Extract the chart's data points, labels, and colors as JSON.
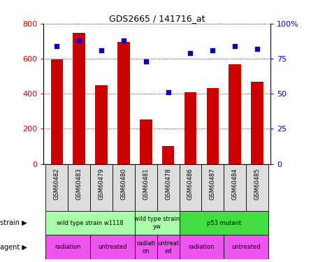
{
  "title": "GDS2665 / 141716_at",
  "samples": [
    "GSM60482",
    "GSM60483",
    "GSM60479",
    "GSM60480",
    "GSM60481",
    "GSM60478",
    "GSM60486",
    "GSM60487",
    "GSM60484",
    "GSM60485"
  ],
  "counts": [
    594,
    749,
    448,
    697,
    252,
    104,
    408,
    431,
    568,
    468
  ],
  "percentiles": [
    84,
    88,
    81,
    88,
    73,
    51,
    79,
    81,
    84,
    82
  ],
  "ylim_left": [
    0,
    800
  ],
  "ylim_right": [
    0,
    100
  ],
  "yticks_left": [
    0,
    200,
    400,
    600,
    800
  ],
  "yticks_right": [
    0,
    25,
    50,
    75,
    100
  ],
  "yticklabels_right": [
    "0",
    "25",
    "50",
    "75",
    "100%"
  ],
  "bar_color": "#cc0000",
  "dot_color": "#0000cc",
  "grid_color": "#000000",
  "strain_row": [
    {
      "label": "wild type strain w1118",
      "span": [
        0,
        4
      ],
      "color": "#aaffaa"
    },
    {
      "label": "wild type strain\nyw",
      "span": [
        4,
        6
      ],
      "color": "#aaffaa"
    },
    {
      "label": "p53 mutant",
      "span": [
        6,
        10
      ],
      "color": "#44dd44"
    }
  ],
  "agent_row": [
    {
      "label": "radiation",
      "span": [
        0,
        2
      ],
      "color": "#ee55ee"
    },
    {
      "label": "untreated",
      "span": [
        2,
        4
      ],
      "color": "#ee55ee"
    },
    {
      "label": "radiati\non",
      "span": [
        4,
        5
      ],
      "color": "#ee55ee"
    },
    {
      "label": "untreat\ned",
      "span": [
        5,
        6
      ],
      "color": "#ee55ee"
    },
    {
      "label": "radiation",
      "span": [
        6,
        8
      ],
      "color": "#ee55ee"
    },
    {
      "label": "untreated",
      "span": [
        8,
        10
      ],
      "color": "#ee55ee"
    }
  ],
  "tick_label_color_left": "#cc0000",
  "tick_label_color_right": "#0000cc",
  "label_bg_color": "#dddddd"
}
